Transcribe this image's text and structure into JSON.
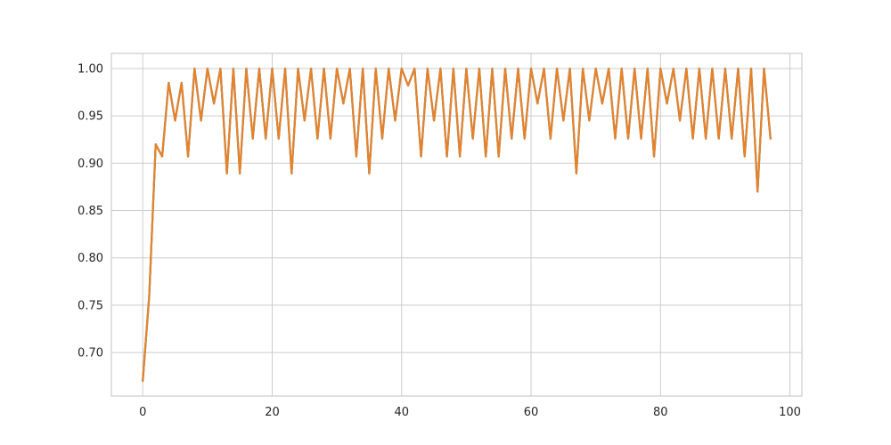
{
  "chart_data": {
    "type": "line",
    "title": "",
    "xlabel": "",
    "ylabel": "",
    "xlim": [
      -4.85,
      101.85
    ],
    "ylim": [
      0.654,
      1.016
    ],
    "x_ticks": [
      0,
      20,
      40,
      60,
      80,
      100
    ],
    "x_tick_labels": [
      "0",
      "20",
      "40",
      "60",
      "80",
      "100"
    ],
    "y_ticks": [
      0.7,
      0.75,
      0.8,
      0.85,
      0.9,
      0.95,
      1.0
    ],
    "y_tick_labels": [
      "0.70",
      "0.75",
      "0.80",
      "0.85",
      "0.90",
      "0.95",
      "1.00"
    ],
    "grid": true,
    "legend": "none",
    "colors": {
      "series_a": "#1f77b4",
      "series_b": "#e6832a",
      "grid": "#cccccc",
      "frame": "#cccccc"
    },
    "series": [
      {
        "color": "#1f77b4",
        "x": [
          0,
          1,
          2,
          3,
          4,
          5,
          6,
          7,
          8,
          9,
          10,
          11,
          12,
          13,
          14,
          15,
          16,
          17,
          18,
          19,
          20,
          21,
          22,
          23,
          24,
          25,
          26,
          27,
          28,
          29,
          30,
          31,
          32,
          33,
          34,
          35,
          36,
          37,
          38,
          39,
          40,
          41,
          42,
          43,
          44,
          45,
          46,
          47,
          48,
          49,
          50,
          51,
          52,
          53,
          54,
          55,
          56,
          57,
          58,
          59,
          60,
          61,
          62,
          63,
          64,
          65,
          66,
          67,
          68,
          69,
          70,
          71,
          72,
          73,
          74,
          75,
          76,
          77,
          78,
          79,
          80,
          81,
          82,
          83,
          84,
          85,
          86,
          87,
          88,
          89,
          90,
          91,
          92,
          93,
          94,
          95,
          96,
          97
        ],
        "values": [
          0.67,
          0.76,
          0.92,
          0.907,
          0.985,
          0.945,
          0.985,
          0.907,
          1.0,
          0.945,
          1.0,
          0.963,
          1.0,
          0.889,
          1.0,
          0.889,
          1.0,
          0.926,
          1.0,
          0.926,
          1.0,
          0.926,
          1.0,
          0.889,
          1.0,
          0.945,
          1.0,
          0.926,
          1.0,
          0.926,
          1.0,
          0.963,
          1.0,
          0.907,
          1.0,
          0.889,
          1.0,
          0.926,
          1.0,
          0.945,
          1.0,
          0.982,
          1.0,
          0.907,
          1.0,
          0.945,
          1.0,
          0.907,
          1.0,
          0.907,
          1.0,
          0.926,
          1.0,
          0.907,
          1.0,
          0.907,
          1.0,
          0.926,
          1.0,
          0.926,
          1.0,
          0.963,
          1.0,
          0.926,
          1.0,
          0.945,
          1.0,
          0.889,
          1.0,
          0.945,
          1.0,
          0.963,
          1.0,
          0.926,
          1.0,
          0.926,
          1.0,
          0.926,
          1.0,
          0.907,
          1.0,
          0.963,
          1.0,
          0.945,
          1.0,
          0.926,
          1.0,
          0.926,
          1.0,
          0.926,
          1.0,
          0.926,
          1.0,
          0.907,
          1.0,
          0.87,
          1.0,
          0.926
        ]
      },
      {
        "color": "#e6832a",
        "x": [
          0,
          1,
          2,
          3,
          4,
          5,
          6,
          7,
          8,
          9,
          10,
          11,
          12,
          13,
          14,
          15,
          16,
          17,
          18,
          19,
          20,
          21,
          22,
          23,
          24,
          25,
          26,
          27,
          28,
          29,
          30,
          31,
          32,
          33,
          34,
          35,
          36,
          37,
          38,
          39,
          40,
          41,
          42,
          43,
          44,
          45,
          46,
          47,
          48,
          49,
          50,
          51,
          52,
          53,
          54,
          55,
          56,
          57,
          58,
          59,
          60,
          61,
          62,
          63,
          64,
          65,
          66,
          67,
          68,
          69,
          70,
          71,
          72,
          73,
          74,
          75,
          76,
          77,
          78,
          79,
          80,
          81,
          82,
          83,
          84,
          85,
          86,
          87,
          88,
          89,
          90,
          91,
          92,
          93,
          94,
          95,
          96,
          97
        ],
        "values": [
          0.67,
          0.76,
          0.92,
          0.907,
          0.985,
          0.945,
          0.985,
          0.907,
          1.0,
          0.945,
          1.0,
          0.963,
          1.0,
          0.889,
          1.0,
          0.889,
          1.0,
          0.926,
          1.0,
          0.926,
          1.0,
          0.926,
          1.0,
          0.889,
          1.0,
          0.945,
          1.0,
          0.926,
          1.0,
          0.926,
          1.0,
          0.963,
          1.0,
          0.907,
          1.0,
          0.889,
          1.0,
          0.926,
          1.0,
          0.945,
          1.0,
          0.982,
          1.0,
          0.907,
          1.0,
          0.945,
          1.0,
          0.907,
          1.0,
          0.907,
          1.0,
          0.926,
          1.0,
          0.907,
          1.0,
          0.907,
          1.0,
          0.926,
          1.0,
          0.926,
          1.0,
          0.963,
          1.0,
          0.926,
          1.0,
          0.945,
          1.0,
          0.889,
          1.0,
          0.945,
          1.0,
          0.963,
          1.0,
          0.926,
          1.0,
          0.926,
          1.0,
          0.926,
          1.0,
          0.907,
          1.0,
          0.963,
          1.0,
          0.945,
          1.0,
          0.926,
          1.0,
          0.926,
          1.0,
          0.926,
          1.0,
          0.926,
          1.0,
          0.907,
          1.0,
          0.87,
          1.0,
          0.926
        ]
      }
    ]
  }
}
